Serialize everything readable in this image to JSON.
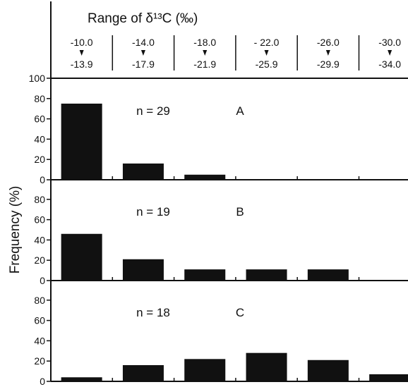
{
  "header": {
    "title": "Range of δ¹³C (‰)",
    "ranges": [
      {
        "from": "-10.0",
        "to": "-13.9"
      },
      {
        "from": "-14.0",
        "to": "-17.9"
      },
      {
        "from": "-18.0",
        "to": "-21.9"
      },
      {
        "from": "- 22.0",
        "to": "-25.9"
      },
      {
        "from": "-26.0",
        "to": "-29.9"
      },
      {
        "from": "-30.0",
        "to": "-34.0"
      }
    ]
  },
  "chart_data": {
    "type": "bar",
    "ylabel": "Frequency (%)",
    "ylim": [
      0,
      100
    ],
    "y_ticks": [
      0,
      20,
      40,
      60,
      80,
      100
    ],
    "categories": [
      "-10.0 – -13.9",
      "-14.0 – -17.9",
      "-18.0 – -21.9",
      "-22.0 – -25.9",
      "-26.0 – -29.9",
      "-30.0 – -34.0"
    ],
    "panels": [
      {
        "label": "A",
        "n_text": "n = 29",
        "values": [
          75,
          16,
          5,
          0,
          0,
          0
        ]
      },
      {
        "label": "B",
        "n_text": "n = 19",
        "values": [
          46,
          21,
          11,
          11,
          11,
          0
        ]
      },
      {
        "label": "C",
        "n_text": "n = 18",
        "values": [
          4,
          16,
          22,
          28,
          21,
          7
        ]
      }
    ],
    "bar_color": "#111111"
  }
}
